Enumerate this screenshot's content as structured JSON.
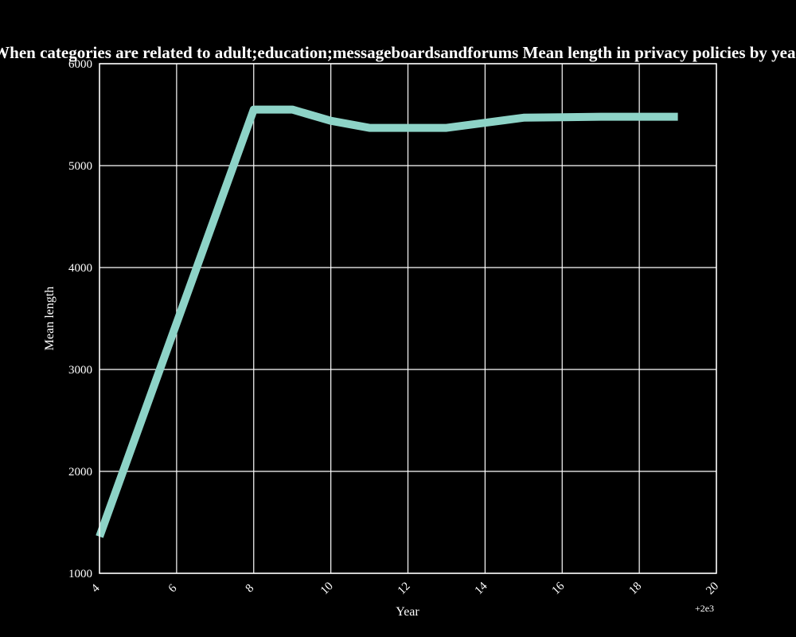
{
  "chart_data": {
    "type": "line",
    "title": "When categories are related to adult;education;messageboardsandforums Mean length in privacy policies by year",
    "xlabel": "Year",
    "ylabel": "Mean length",
    "x_offset_label": "+2e3",
    "xlim": [
      4,
      20
    ],
    "ylim": [
      1000,
      6000
    ],
    "x_ticks": [
      4,
      6,
      8,
      10,
      12,
      14,
      16,
      18,
      20
    ],
    "y_ticks": [
      1000,
      2000,
      3000,
      4000,
      5000,
      6000
    ],
    "grid": true,
    "series": [
      {
        "x": [
          4,
          8,
          9,
          10,
          11,
          12,
          13,
          14,
          15,
          16,
          17,
          18,
          19
        ],
        "y": [
          1360,
          5550,
          5550,
          5440,
          5370,
          5370,
          5370,
          5420,
          5470,
          5475,
          5480,
          5480,
          5480
        ]
      }
    ],
    "colors": {
      "background": "#000000",
      "line": "#8dd3c7",
      "text": "#ffffff",
      "grid": "#ffffff"
    }
  }
}
